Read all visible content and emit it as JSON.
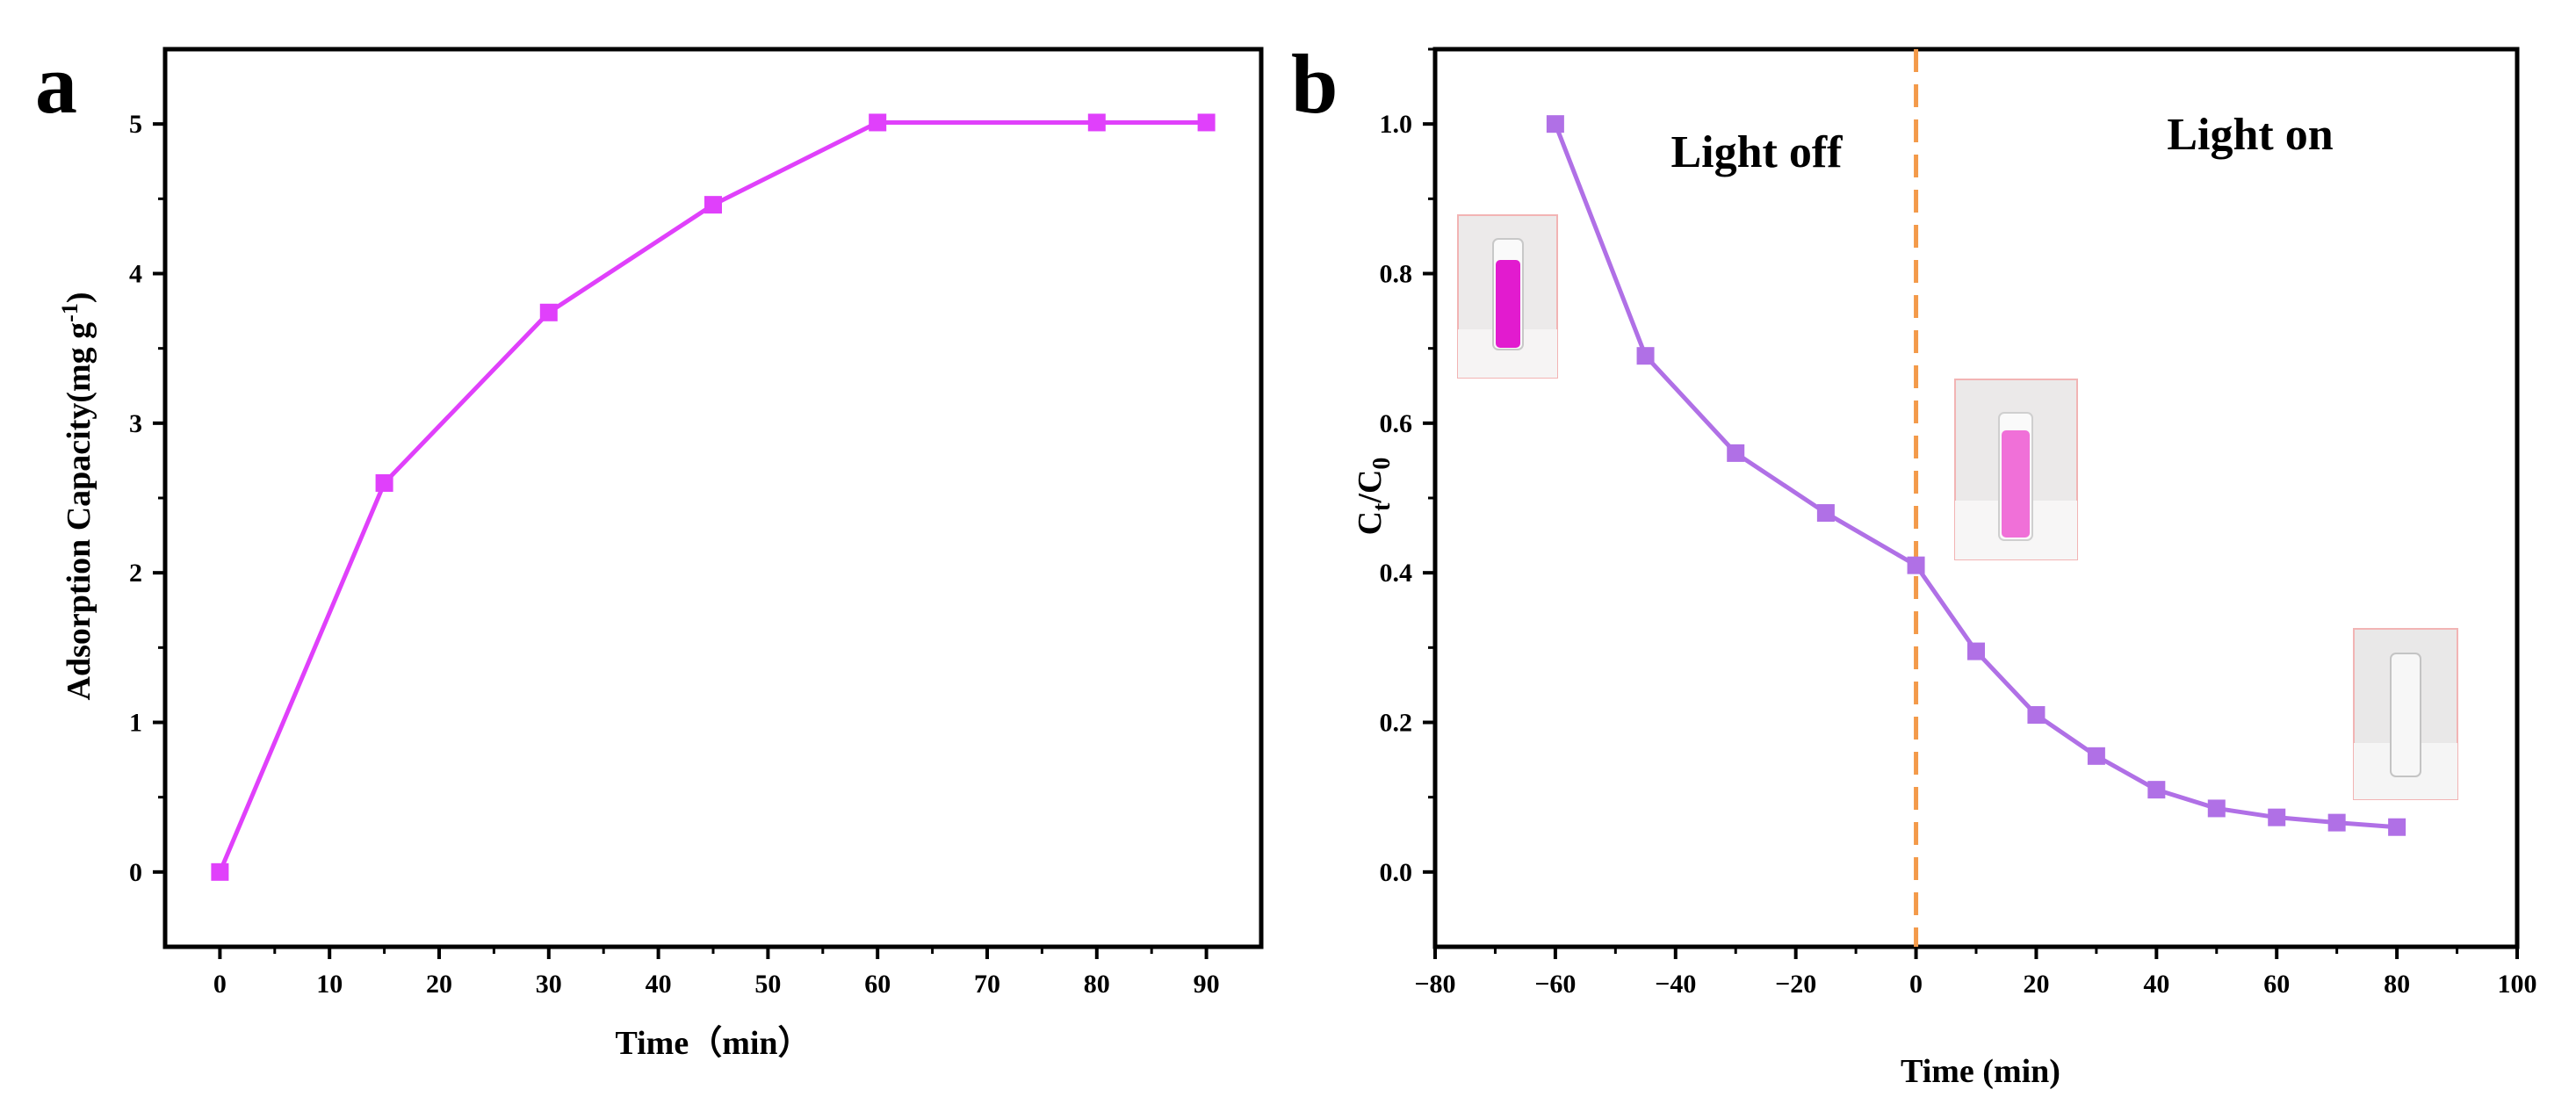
{
  "colors": {
    "panel_a_series": "#e040fb",
    "panel_b_series": "#b070e6",
    "light_divider": "#f39a4a",
    "vial_pink_dark": "#e21bcf",
    "vial_pink_light": "#f070d8"
  },
  "chart_data": [
    {
      "panel": "a",
      "type": "line",
      "title": "",
      "xlabel": "Time（min）",
      "ylabel": "Adsorption Capacity(mg g",
      "ylabel_sup": "-1",
      "ylabel_close": ")",
      "xlim": [
        -5,
        95
      ],
      "ylim": [
        -0.5,
        5.5
      ],
      "xticks": [
        0,
        10,
        20,
        30,
        40,
        50,
        60,
        70,
        80,
        90
      ],
      "xtick_labels": [
        "0",
        "10",
        "20",
        "30",
        "40",
        "50",
        "60",
        "70",
        "80",
        "90"
      ],
      "yticks": [
        0,
        1,
        2,
        3,
        4,
        5
      ],
      "ytick_labels": [
        "0",
        "1",
        "2",
        "3",
        "4",
        "5"
      ],
      "series": [
        {
          "name": "Adsorption Capacity",
          "x": [
            0,
            15,
            30,
            45,
            60,
            80,
            90
          ],
          "y": [
            0,
            2.6,
            3.74,
            4.46,
            5.01,
            5.01,
            5.01
          ]
        }
      ]
    },
    {
      "panel": "b",
      "type": "line",
      "title": "",
      "xlabel": "Time (min)",
      "ylabel_main": "C",
      "ylabel_sub1": "t",
      "ylabel_mid": "/C",
      "ylabel_sub2": "0",
      "xlim": [
        -80,
        100
      ],
      "ylim": [
        -0.1,
        1.1
      ],
      "xticks": [
        -80,
        -60,
        -40,
        -20,
        0,
        20,
        40,
        60,
        80,
        100
      ],
      "xtick_labels": [
        "−80",
        "−60",
        "−40",
        "−20",
        "0",
        "20",
        "40",
        "60",
        "80",
        "100"
      ],
      "yticks": [
        0.0,
        0.2,
        0.4,
        0.6,
        0.8,
        1.0
      ],
      "ytick_labels": [
        "0.0",
        "0.2",
        "0.4",
        "0.6",
        "0.8",
        "1.0"
      ],
      "divider_x": 0,
      "annotations": [
        "Light off",
        "Light on"
      ],
      "series": [
        {
          "name": "Ct/C0",
          "x": [
            -60,
            -45,
            -30,
            -15,
            0,
            10,
            20,
            30,
            40,
            50,
            60,
            70,
            80
          ],
          "y": [
            1.0,
            0.69,
            0.56,
            0.48,
            0.41,
            0.295,
            0.21,
            0.155,
            0.11,
            0.085,
            0.073,
            0.066,
            0.06
          ]
        }
      ]
    }
  ],
  "panel_labels": [
    "a",
    "b"
  ]
}
